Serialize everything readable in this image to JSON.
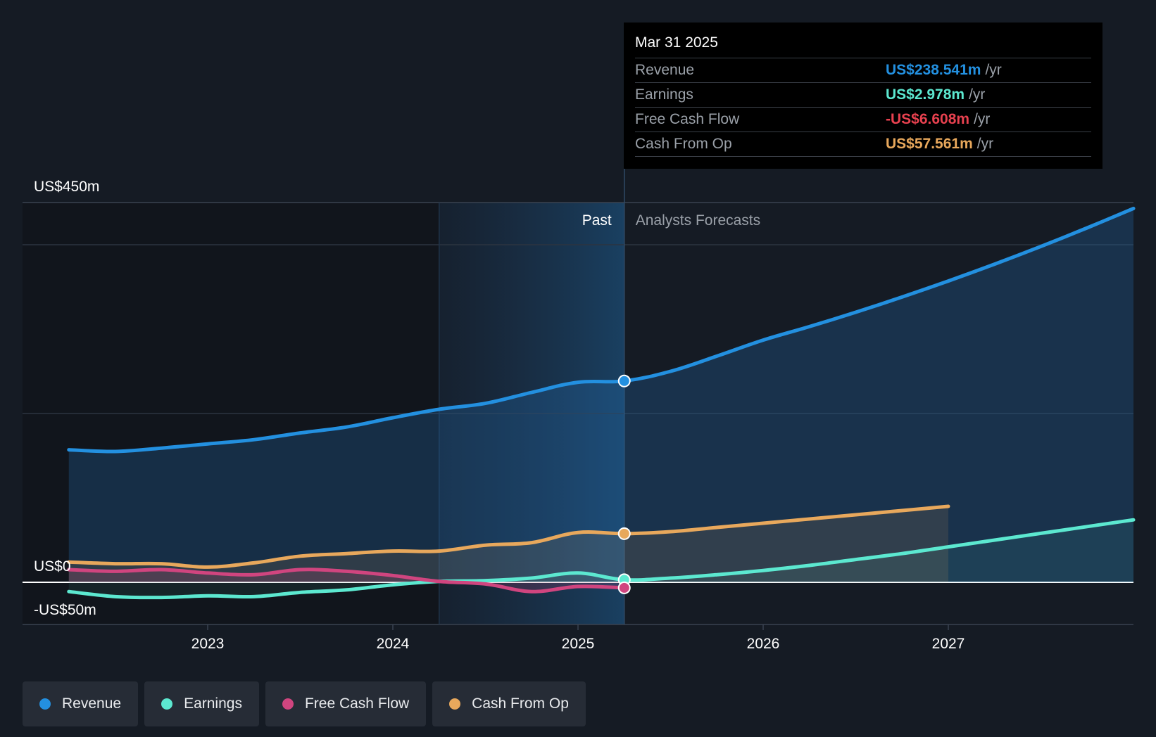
{
  "tooltip": {
    "date": "Mar 31 2025",
    "rows": [
      {
        "label": "Revenue",
        "value": "US$238.541m",
        "unit": "/yr",
        "color": "#2390e0"
      },
      {
        "label": "Earnings",
        "value": "US$2.978m",
        "unit": "/yr",
        "color": "#5ce8d0"
      },
      {
        "label": "Free Cash Flow",
        "value": "-US$6.608m",
        "unit": "/yr",
        "color": "#e8414f"
      },
      {
        "label": "Cash From Op",
        "value": "US$57.561m",
        "unit": "/yr",
        "color": "#e8a85c"
      }
    ]
  },
  "legend": [
    {
      "label": "Revenue",
      "color": "#2390e0"
    },
    {
      "label": "Earnings",
      "color": "#5ce8d0"
    },
    {
      "label": "Free Cash Flow",
      "color": "#d0457f"
    },
    {
      "label": "Cash From Op",
      "color": "#e8a85c"
    }
  ],
  "chart_data": {
    "type": "area",
    "title": "",
    "xlabel": "",
    "ylabel": "",
    "ylim": [
      -50,
      450
    ],
    "y_tick_labels": [
      {
        "value": 450,
        "label": "US$450m"
      },
      {
        "value": 0,
        "label": "US$0"
      },
      {
        "value": -50,
        "label": "-US$50m"
      }
    ],
    "x_ticks": [
      2023,
      2024,
      2025,
      2026,
      2027
    ],
    "xlim": [
      2022.0,
      2028.0
    ],
    "past_label": "Past",
    "forecast_label": "Analysts Forecasts",
    "past_region_start": 2024.25,
    "divider_x": 2025.25,
    "series": [
      {
        "name": "Revenue",
        "color": "#2390e0",
        "points": [
          [
            2022.25,
            157
          ],
          [
            2022.5,
            155
          ],
          [
            2022.75,
            159
          ],
          [
            2023.0,
            164
          ],
          [
            2023.25,
            169
          ],
          [
            2023.5,
            177
          ],
          [
            2023.75,
            184
          ],
          [
            2024.0,
            195
          ],
          [
            2024.25,
            205
          ],
          [
            2024.5,
            212
          ],
          [
            2024.75,
            225
          ],
          [
            2025.0,
            237
          ],
          [
            2025.25,
            238.5
          ],
          [
            2025.5,
            250
          ],
          [
            2025.75,
            268
          ],
          [
            2026.0,
            287
          ],
          [
            2026.25,
            303
          ],
          [
            2026.5,
            320
          ],
          [
            2026.75,
            338
          ],
          [
            2027.0,
            357
          ],
          [
            2027.25,
            377
          ],
          [
            2027.5,
            398
          ],
          [
            2027.75,
            420
          ],
          [
            2028.0,
            443
          ]
        ]
      },
      {
        "name": "Earnings",
        "color": "#5ce8d0",
        "points": [
          [
            2022.25,
            -11
          ],
          [
            2022.5,
            -17
          ],
          [
            2022.75,
            -18
          ],
          [
            2023.0,
            -16
          ],
          [
            2023.25,
            -17
          ],
          [
            2023.5,
            -12
          ],
          [
            2023.75,
            -9
          ],
          [
            2024.0,
            -3
          ],
          [
            2024.25,
            1
          ],
          [
            2024.5,
            2
          ],
          [
            2024.75,
            5
          ],
          [
            2025.0,
            11
          ],
          [
            2025.25,
            3
          ],
          [
            2025.5,
            5
          ],
          [
            2025.75,
            9
          ],
          [
            2026.0,
            14
          ],
          [
            2026.25,
            20
          ],
          [
            2026.5,
            27
          ],
          [
            2026.75,
            34
          ],
          [
            2027.0,
            42
          ],
          [
            2027.25,
            50
          ],
          [
            2027.5,
            58
          ],
          [
            2027.75,
            66
          ],
          [
            2028.0,
            74
          ]
        ]
      },
      {
        "name": "Free Cash Flow",
        "color": "#d0457f",
        "points": [
          [
            2022.25,
            15
          ],
          [
            2022.5,
            13
          ],
          [
            2022.75,
            15
          ],
          [
            2023.0,
            11
          ],
          [
            2023.25,
            9
          ],
          [
            2023.5,
            15
          ],
          [
            2023.75,
            13
          ],
          [
            2024.0,
            8
          ],
          [
            2024.25,
            1
          ],
          [
            2024.5,
            -2
          ],
          [
            2024.75,
            -11
          ],
          [
            2025.0,
            -5
          ],
          [
            2025.25,
            -6.6
          ]
        ]
      },
      {
        "name": "Cash From Op",
        "color": "#e8a85c",
        "points": [
          [
            2022.25,
            24
          ],
          [
            2022.5,
            22
          ],
          [
            2022.75,
            22
          ],
          [
            2023.0,
            18
          ],
          [
            2023.25,
            23
          ],
          [
            2023.5,
            31
          ],
          [
            2023.75,
            34
          ],
          [
            2024.0,
            37
          ],
          [
            2024.25,
            37
          ],
          [
            2024.5,
            44
          ],
          [
            2024.75,
            47
          ],
          [
            2025.0,
            59
          ],
          [
            2025.25,
            57.6
          ],
          [
            2025.5,
            60
          ],
          [
            2025.75,
            65
          ],
          [
            2026.0,
            70
          ],
          [
            2026.25,
            75
          ],
          [
            2026.5,
            80
          ],
          [
            2026.75,
            85
          ],
          [
            2027.0,
            90
          ]
        ]
      }
    ]
  }
}
